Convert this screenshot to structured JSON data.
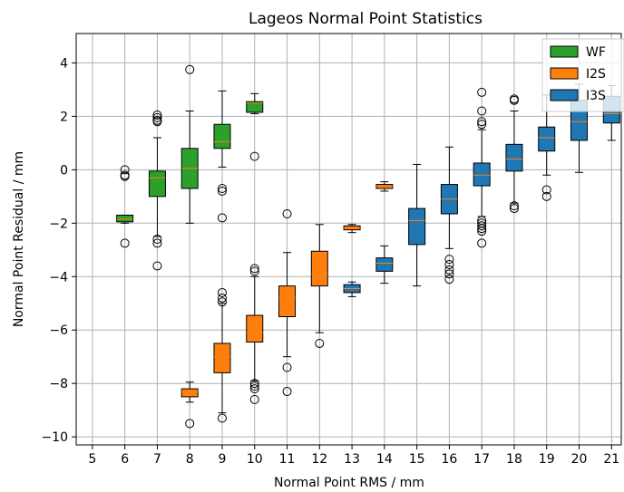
{
  "chart_data": {
    "type": "boxplot",
    "title": "Lageos Normal Point Statistics",
    "xlabel": "Normal Point RMS / mm",
    "ylabel": "Normal Point Residual / mm",
    "xlim": [
      4.5,
      21.3
    ],
    "ylim": [
      -10.3,
      5.1
    ],
    "xticks": [
      5,
      6,
      7,
      8,
      9,
      10,
      11,
      12,
      13,
      14,
      15,
      16,
      17,
      18,
      19,
      20,
      21
    ],
    "yticks": [
      -10,
      -8,
      -6,
      -4,
      -2,
      0,
      2,
      4
    ],
    "ytick_labels": [
      "−10",
      "−8",
      "−6",
      "−4",
      "−2",
      "0",
      "2",
      "4"
    ],
    "grid": true,
    "legend_position": "top-right",
    "series": [
      {
        "name": "WF",
        "color": "#2ca02c",
        "boxes": [
          {
            "x": 6,
            "min": -2.0,
            "q1": -1.95,
            "median": -1.85,
            "q3": -1.7,
            "max": -1.7,
            "outliers": [
              0.0,
              -0.2,
              -0.25,
              -2.75
            ]
          },
          {
            "x": 7,
            "min": -2.5,
            "q1": -1.0,
            "median": -0.3,
            "q3": -0.05,
            "max": 1.2,
            "outliers": [
              2.05,
              1.95,
              1.85,
              1.8,
              -2.6,
              -2.75,
              -3.6
            ]
          },
          {
            "x": 8,
            "min": -2.0,
            "q1": -0.7,
            "median": 0.05,
            "q3": 0.8,
            "max": 2.2,
            "outliers": [
              3.75
            ]
          },
          {
            "x": 9,
            "min": 0.1,
            "q1": 0.8,
            "median": 1.05,
            "q3": 1.7,
            "max": 2.95,
            "outliers": [
              -0.7,
              -0.8,
              -1.8
            ]
          },
          {
            "x": 10,
            "min": 2.1,
            "q1": 2.15,
            "median": 2.5,
            "q3": 2.55,
            "max": 2.85,
            "outliers": [
              0.5
            ]
          }
        ]
      },
      {
        "name": "I2S",
        "color": "#ff7f0e",
        "boxes": [
          {
            "x": 8,
            "min": -8.7,
            "q1": -8.5,
            "median": -8.3,
            "q3": -8.2,
            "max": -7.95,
            "outliers": [
              -9.5
            ]
          },
          {
            "x": 9,
            "min": -9.1,
            "q1": -7.6,
            "median": -7.0,
            "q3": -6.5,
            "max": -5.0,
            "outliers": [
              -4.6,
              -4.8,
              -4.95,
              -9.3
            ]
          },
          {
            "x": 10,
            "min": -7.9,
            "q1": -6.45,
            "median": -6.1,
            "q3": -5.45,
            "max": -4.0,
            "outliers": [
              -3.7,
              -3.8,
              -8.0,
              -8.1,
              -8.2,
              -8.6
            ]
          },
          {
            "x": 11,
            "min": -7.0,
            "q1": -5.5,
            "median": -4.8,
            "q3": -4.35,
            "max": -3.1,
            "outliers": [
              -1.65,
              -7.4,
              -8.3
            ]
          },
          {
            "x": 12,
            "min": -6.1,
            "q1": -4.35,
            "median": -3.9,
            "q3": -3.05,
            "max": -2.05,
            "outliers": [
              -6.5
            ]
          },
          {
            "x": 13,
            "min": -2.35,
            "q1": -2.25,
            "median": -2.2,
            "q3": -2.1,
            "max": -2.05,
            "outliers": []
          },
          {
            "x": 14,
            "min": -0.8,
            "q1": -0.7,
            "median": -0.6,
            "q3": -0.55,
            "max": -0.45,
            "outliers": []
          }
        ]
      },
      {
        "name": "I3S",
        "color": "#1f77b4",
        "boxes": [
          {
            "x": 13,
            "min": -4.75,
            "q1": -4.6,
            "median": -4.45,
            "q3": -4.3,
            "max": -4.2,
            "outliers": []
          },
          {
            "x": 14,
            "min": -4.25,
            "q1": -3.8,
            "median": -3.5,
            "q3": -3.3,
            "max": -2.85,
            "outliers": []
          },
          {
            "x": 15,
            "min": -4.35,
            "q1": -2.8,
            "median": -1.9,
            "q3": -1.45,
            "max": 0.2,
            "outliers": []
          },
          {
            "x": 16,
            "min": -2.95,
            "q1": -1.65,
            "median": -1.1,
            "q3": -0.55,
            "max": 0.85,
            "outliers": [
              -3.35,
              -3.55,
              -3.75,
              -3.9,
              -4.1
            ]
          },
          {
            "x": 17,
            "min": -1.75,
            "q1": -0.6,
            "median": -0.2,
            "q3": 0.25,
            "max": 1.5,
            "outliers": [
              2.9,
              2.2,
              1.8,
              1.7,
              -1.9,
              -2.0,
              -2.1,
              -2.2,
              -2.3,
              -2.75
            ]
          },
          {
            "x": 18,
            "min": -1.25,
            "q1": -0.05,
            "median": 0.4,
            "q3": 0.95,
            "max": 2.2,
            "outliers": [
              2.65,
              2.6,
              -1.35,
              -1.45
            ]
          },
          {
            "x": 19,
            "min": -0.2,
            "q1": 0.7,
            "median": 1.2,
            "q3": 1.6,
            "max": 2.8,
            "outliers": [
              -0.75,
              -1.0
            ]
          },
          {
            "x": 20,
            "min": -0.1,
            "q1": 1.1,
            "median": 1.8,
            "q3": 2.6,
            "max": 3.2,
            "outliers": []
          },
          {
            "x": 21,
            "min": 1.1,
            "q1": 1.75,
            "median": 2.1,
            "q3": 2.75,
            "max": 3.15,
            "outliers": []
          }
        ]
      }
    ]
  }
}
